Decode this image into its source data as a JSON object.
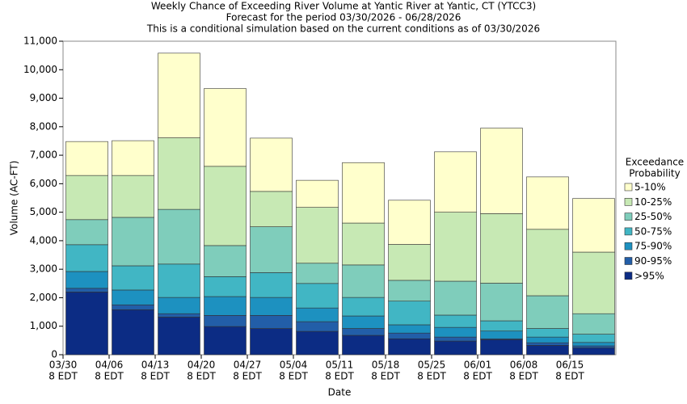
{
  "chart_data": {
    "type": "stacked_bar",
    "title": "Weekly Chance of Exceeding River Volume at Yantic River at Yantic, CT (YTCC3)",
    "subtitle": "Forecast for the period 03/30/2026 - 06/28/2026",
    "subtitle2": "This is a conditional simulation based on the current conditions as of 03/30/2026",
    "x_label": "Date",
    "y_label": "Volume (AC-FT)",
    "legend_title": [
      "Exceedance",
      "Probability"
    ],
    "legend_position": "right",
    "categories": [
      [
        "03/30",
        "8 EDT"
      ],
      [
        "04/06",
        "8 EDT"
      ],
      [
        "04/13",
        "8 EDT"
      ],
      [
        "04/20",
        "8 EDT"
      ],
      [
        "04/27",
        "8 EDT"
      ],
      [
        "05/04",
        "8 EDT"
      ],
      [
        "05/11",
        "8 EDT"
      ],
      [
        "05/18",
        "8 EDT"
      ],
      [
        "05/25",
        "8 EDT"
      ],
      [
        "06/01",
        "8 EDT"
      ],
      [
        "06/08",
        "8 EDT"
      ],
      [
        "06/15",
        "8 EDT"
      ]
    ],
    "series": [
      {
        "name": ">95%",
        "color": "#0c2c84",
        "values": [
          2200,
          1580,
          1320,
          990,
          920,
          820,
          680,
          560,
          480,
          530,
          330,
          240
        ]
      },
      {
        "name": "90-95%",
        "color": "#225ea8",
        "values": [
          130,
          170,
          120,
          390,
          460,
          340,
          240,
          200,
          140,
          30,
          90,
          70
        ]
      },
      {
        "name": "75-90%",
        "color": "#1d91c0",
        "values": [
          590,
          520,
          570,
          660,
          630,
          480,
          440,
          290,
          340,
          270,
          200,
          120
        ]
      },
      {
        "name": "50-75%",
        "color": "#41b6c4",
        "values": [
          940,
          850,
          1170,
          700,
          870,
          860,
          650,
          830,
          430,
          360,
          300,
          290
        ]
      },
      {
        "name": "25-50%",
        "color": "#7fcdbb",
        "values": [
          880,
          1700,
          1920,
          1090,
          1610,
          710,
          1140,
          730,
          1190,
          1320,
          1150,
          720
        ]
      },
      {
        "name": "10-25%",
        "color": "#c7e9b4",
        "values": [
          1550,
          1470,
          2510,
          2780,
          1240,
          1960,
          1470,
          1260,
          2420,
          2440,
          2330,
          2160
        ]
      },
      {
        "name": "5-10%",
        "color": "#ffffcc",
        "values": [
          1190,
          1220,
          2970,
          2730,
          1870,
          950,
          2120,
          1550,
          2120,
          3000,
          1840,
          1880
        ]
      }
    ],
    "ylim": [
      0,
      11000
    ],
    "yticks": [
      0,
      {
        "value": 1000,
        "label": "1,000"
      },
      {
        "value": 2000,
        "label": "2,000"
      },
      {
        "value": 3000,
        "label": "3,000"
      },
      {
        "value": 4000,
        "label": "4,000"
      },
      {
        "value": 5000,
        "label": "5,000"
      },
      {
        "value": 6000,
        "label": "6,000"
      },
      {
        "value": 7000,
        "label": "7,000"
      },
      {
        "value": 8000,
        "label": "8,000"
      },
      {
        "value": 9000,
        "label": "9,000"
      },
      {
        "value": 10000,
        "label": "10,000"
      },
      {
        "value": 11000,
        "label": "11,000"
      }
    ]
  }
}
